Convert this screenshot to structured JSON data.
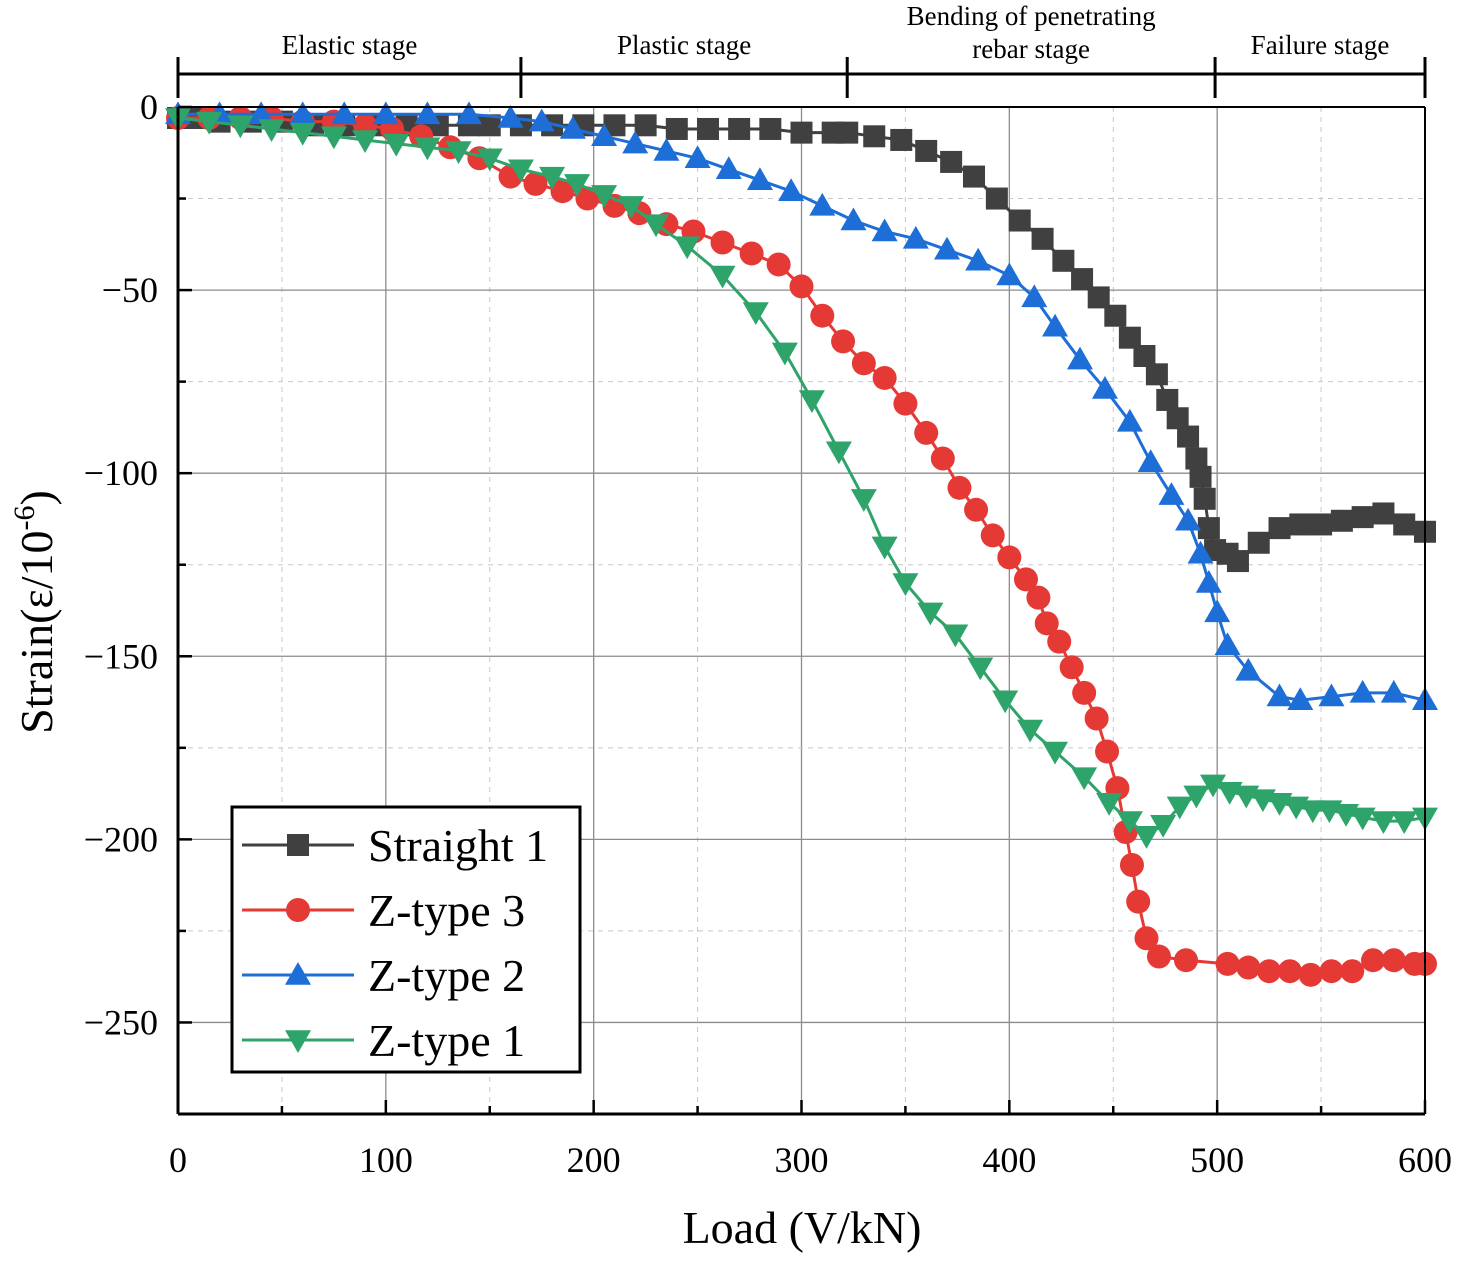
{
  "chart_data": {
    "type": "line",
    "xlabel": "Load (V/kN)",
    "ylabel": "Strain(ε/10",
    "ylabel_superscript": "-6",
    "ylabel_close": ")",
    "xlim": [
      0,
      600
    ],
    "ylim": [
      -275,
      0
    ],
    "x_ticks": [
      0,
      100,
      200,
      300,
      400,
      500,
      600
    ],
    "x_tick_labels": [
      "0",
      "100",
      "200",
      "300",
      "400",
      "500",
      "600"
    ],
    "y_ticks": [
      0,
      -50,
      -100,
      -150,
      -200,
      -250
    ],
    "y_tick_labels": [
      "0",
      "−50",
      "−100",
      "−150",
      "−200",
      "−250"
    ],
    "grid": true,
    "legend_position": "bottom-left",
    "stages": [
      {
        "lines": [
          "Elastic stage"
        ],
        "start": 0,
        "end": 165
      },
      {
        "lines": [
          "Plastic stage"
        ],
        "start": 165,
        "end": 322
      },
      {
        "lines": [
          "Bending of penetrating",
          "rebar stage"
        ],
        "start": 322,
        "end": 499
      },
      {
        "lines": [
          "Failure stage"
        ],
        "start": 499,
        "end": 600
      }
    ],
    "series": [
      {
        "name": "Straight 1",
        "color": "#404040",
        "marker": "square",
        "x": [
          0,
          8,
          20,
          35,
          50,
          65,
          80,
          95,
          110,
          125,
          140,
          150,
          165,
          180,
          195,
          210,
          225,
          240,
          255,
          270,
          285,
          300,
          315,
          322,
          335,
          348,
          360,
          372,
          383,
          394,
          405,
          416,
          426,
          435,
          443,
          451,
          458,
          465,
          471,
          476,
          481,
          486,
          490,
          492,
          494,
          496,
          499,
          505,
          510,
          520,
          530,
          540,
          550,
          560,
          570,
          580,
          590,
          600
        ],
        "y": [
          -3,
          -3,
          -4,
          -4,
          -4,
          -5,
          -5,
          -5,
          -5,
          -5,
          -5,
          -5,
          -5,
          -5,
          -5,
          -5,
          -5,
          -6,
          -6,
          -6,
          -6,
          -7,
          -7,
          -7,
          -8,
          -9,
          -12,
          -15,
          -19,
          -25,
          -31,
          -36,
          -42,
          -47,
          -52,
          -57,
          -63,
          -68,
          -73,
          -80,
          -85,
          -90,
          -96,
          -101,
          -107,
          -115,
          -121,
          -122,
          -124,
          -119,
          -115,
          -114,
          -114,
          -113,
          -112,
          -111,
          -114,
          -116
        ]
      },
      {
        "name": "Z-type 3",
        "color": "#e53935",
        "marker": "circle",
        "x": [
          0,
          15,
          30,
          45,
          60,
          75,
          90,
          103,
          117,
          131,
          145,
          160,
          172,
          185,
          197,
          210,
          222,
          235,
          248,
          262,
          276,
          289,
          300,
          310,
          320,
          330,
          340,
          350,
          360,
          368,
          376,
          384,
          392,
          400,
          408,
          414,
          418,
          424,
          430,
          436,
          442,
          447,
          452,
          456,
          459,
          462,
          466,
          472,
          485,
          505,
          515,
          525,
          535,
          545,
          555,
          565,
          575,
          585,
          595,
          600
        ],
        "y": [
          -3,
          -3,
          -3,
          -3,
          -4,
          -4,
          -5,
          -6,
          -8,
          -11,
          -14,
          -19,
          -21,
          -23,
          -25,
          -27,
          -29,
          -32,
          -34,
          -37,
          -40,
          -43,
          -49,
          -57,
          -64,
          -70,
          -74,
          -81,
          -89,
          -96,
          -104,
          -110,
          -117,
          -123,
          -129,
          -134,
          -141,
          -146,
          -153,
          -160,
          -167,
          -176,
          -186,
          -198,
          -207,
          -217,
          -227,
          -232,
          -233,
          -234,
          -235,
          -236,
          -236,
          -237,
          -236,
          -236,
          -233,
          -233,
          -234,
          -234
        ]
      },
      {
        "name": "Z-type 2",
        "color": "#1e6ed7",
        "marker": "triangle-up",
        "x": [
          0,
          20,
          40,
          60,
          80,
          100,
          120,
          140,
          160,
          175,
          190,
          205,
          220,
          235,
          250,
          265,
          280,
          295,
          310,
          325,
          340,
          355,
          370,
          385,
          400,
          412,
          422,
          434,
          446,
          458,
          468,
          478,
          486,
          492,
          496,
          500,
          505,
          515,
          530,
          540,
          555,
          570,
          585,
          600
        ],
        "y": [
          -2,
          -2,
          -2,
          -2,
          -2,
          -2,
          -2,
          -2,
          -3,
          -4,
          -6,
          -8,
          -10,
          -12,
          -14,
          -17,
          -20,
          -23,
          -27,
          -31,
          -34,
          -36,
          -39,
          -42,
          -46,
          -52,
          -60,
          -69,
          -77,
          -86,
          -97,
          -106,
          -113,
          -122,
          -130,
          -138,
          -147,
          -154,
          -161,
          -162,
          -161,
          -160,
          -160,
          -162
        ]
      },
      {
        "name": "Z-type 1",
        "color": "#2ea36a",
        "marker": "triangle-down",
        "x": [
          0,
          15,
          30,
          45,
          60,
          75,
          90,
          105,
          120,
          135,
          150,
          165,
          180,
          192,
          205,
          218,
          230,
          245,
          262,
          278,
          292,
          305,
          318,
          330,
          340,
          350,
          362,
          374,
          386,
          398,
          410,
          422,
          436,
          448,
          458,
          466,
          474,
          482,
          490,
          498,
          506,
          514,
          522,
          530,
          538,
          546,
          554,
          562,
          570,
          580,
          590,
          600
        ],
        "y": [
          -3,
          -4,
          -5,
          -6,
          -7,
          -8,
          -9,
          -10,
          -11,
          -12,
          -14,
          -17,
          -19,
          -21,
          -24,
          -27,
          -32,
          -38,
          -46,
          -56,
          -67,
          -80,
          -94,
          -107,
          -120,
          -130,
          -138,
          -144,
          -153,
          -162,
          -170,
          -176,
          -183,
          -190,
          -195,
          -199,
          -196,
          -191,
          -188,
          -185,
          -187,
          -188,
          -189,
          -190,
          -191,
          -192,
          -192,
          -193,
          -194,
          -195,
          -195,
          -194
        ]
      }
    ]
  }
}
